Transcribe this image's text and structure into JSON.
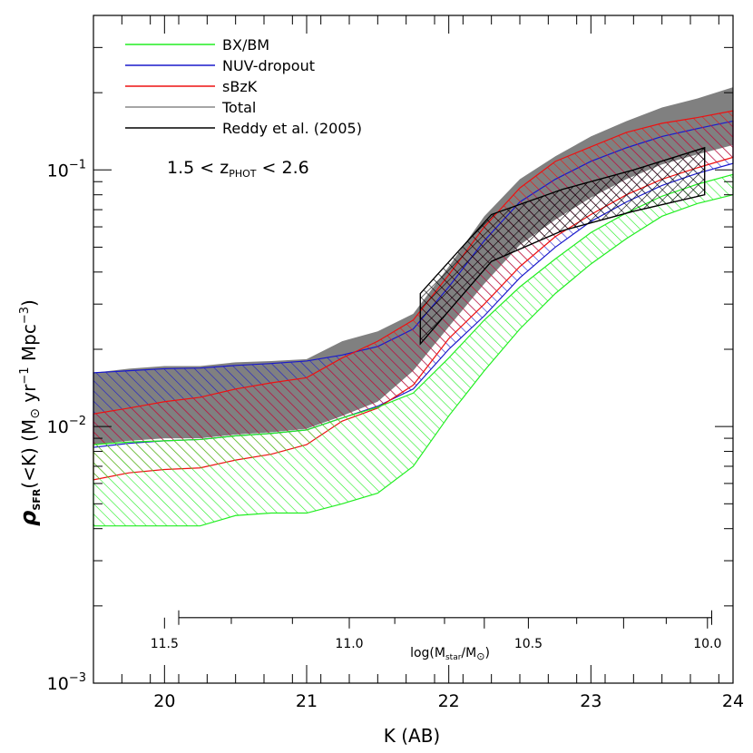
{
  "chart_data": {
    "type": "area",
    "xlabel_main": "K (AB)",
    "ylabel_main": "ρ",
    "ylabel_sub": "SFR",
    "ylabel_rest": "(<K)  (M",
    "ylabel_sun": "⊙",
    "ylabel_units": " yr",
    "ylabel_exp1": "−1",
    "ylabel_mpc": " Mpc",
    "ylabel_exp3": "−3",
    "ylabel_close": ")",
    "xlim": [
      19.5,
      24
    ],
    "ylim": [
      0.001,
      0.4
    ],
    "yscale": "log",
    "x_ticks": [
      20,
      21,
      22,
      23,
      24
    ],
    "x_tick_labels": [
      "20",
      "21",
      "22",
      "23",
      "24"
    ],
    "y_major_ticks": [
      0.001,
      0.01,
      0.1
    ],
    "y_tick_base": "10",
    "y_tick_exps": [
      "−3",
      "−2",
      "−1"
    ],
    "secondary_axis": {
      "label_main": "log(M",
      "label_sub1": "star",
      "label_mid": "/M",
      "label_sun": "⊙",
      "label_close": ")",
      "y_level": 0.0018,
      "x_range": [
        20.1,
        23.85
      ],
      "ticks": [
        {
          "x": 20.0,
          "label": "11.5"
        },
        {
          "x": 21.3,
          "label": "11.0"
        },
        {
          "x": 22.25,
          "label": ""
        },
        {
          "x": 22.56,
          "label": "10.5"
        },
        {
          "x": 23.23,
          "label": ""
        },
        {
          "x": 23.82,
          "label": "10.0"
        }
      ],
      "minor_ticks": [
        20.47,
        20.9,
        21.62,
        21.97,
        22.9,
        23.53
      ]
    },
    "annotation": {
      "prefix": "1.5  <  z",
      "sub": "PHOT",
      "suffix": "  <  2.6"
    },
    "legend": {
      "placement": "top-left",
      "entries": [
        {
          "name": "BX/BM",
          "color": "#22ee22"
        },
        {
          "name": "NUV-dropout",
          "color": "#1a1acc"
        },
        {
          "name": "sBzK",
          "color": "#ee1111"
        },
        {
          "name": "Total",
          "color": "#888888"
        },
        {
          "name": "Reddy et al. (2005)",
          "color": "#000000"
        }
      ]
    },
    "series": [
      {
        "name": "Total",
        "color": "#808080",
        "fill": "solid",
        "x": [
          19.5,
          19.75,
          20.0,
          20.25,
          20.5,
          20.75,
          21.0,
          21.25,
          21.5,
          21.75,
          22.0,
          22.25,
          22.5,
          22.75,
          23.0,
          23.25,
          23.5,
          23.75,
          24.0
        ],
        "upper": [
          0.0162,
          0.0168,
          0.0172,
          0.0172,
          0.0178,
          0.018,
          0.0183,
          0.0215,
          0.0235,
          0.0275,
          0.042,
          0.066,
          0.092,
          0.113,
          0.135,
          0.155,
          0.175,
          0.19,
          0.21
        ],
        "lower": [
          0.0085,
          0.0088,
          0.009,
          0.009,
          0.0093,
          0.0095,
          0.0098,
          0.011,
          0.0125,
          0.0165,
          0.0245,
          0.036,
          0.051,
          0.064,
          0.078,
          0.092,
          0.105,
          0.115,
          0.125
        ]
      },
      {
        "name": "NUV-dropout",
        "color": "#1a1acc",
        "fill": "hatch",
        "x": [
          19.5,
          19.75,
          20.0,
          20.25,
          20.5,
          20.75,
          21.0,
          21.25,
          21.5,
          21.75,
          22.0,
          22.25,
          22.5,
          22.75,
          23.0,
          23.25,
          23.5,
          23.75,
          24.0
        ],
        "upper": [
          0.0162,
          0.0165,
          0.0168,
          0.0169,
          0.0173,
          0.0176,
          0.018,
          0.019,
          0.0205,
          0.024,
          0.035,
          0.053,
          0.075,
          0.092,
          0.108,
          0.122,
          0.135,
          0.145,
          0.155
        ],
        "lower": [
          0.0083,
          0.0086,
          0.0088,
          0.0089,
          0.0092,
          0.0094,
          0.0097,
          0.0108,
          0.012,
          0.014,
          0.02,
          0.027,
          0.038,
          0.05,
          0.063,
          0.075,
          0.087,
          0.097,
          0.106
        ]
      },
      {
        "name": "sBzK",
        "color": "#ee1111",
        "fill": "hatch",
        "x": [
          19.5,
          19.75,
          20.0,
          20.25,
          20.5,
          20.75,
          21.0,
          21.25,
          21.5,
          21.75,
          22.0,
          22.25,
          22.5,
          22.75,
          23.0,
          23.25,
          23.5,
          23.75,
          24.0
        ],
        "upper": [
          0.0112,
          0.0118,
          0.0125,
          0.013,
          0.014,
          0.0148,
          0.0155,
          0.0185,
          0.0215,
          0.026,
          0.039,
          0.06,
          0.085,
          0.108,
          0.123,
          0.14,
          0.152,
          0.16,
          0.17
        ],
        "lower": [
          0.0062,
          0.0066,
          0.0068,
          0.0069,
          0.0074,
          0.0078,
          0.0085,
          0.0105,
          0.0118,
          0.0145,
          0.022,
          0.03,
          0.042,
          0.055,
          0.067,
          0.08,
          0.092,
          0.102,
          0.112
        ]
      },
      {
        "name": "BX/BM",
        "color": "#22ee22",
        "fill": "hatch",
        "x": [
          19.5,
          19.75,
          20.0,
          20.25,
          20.5,
          20.75,
          21.0,
          21.25,
          21.5,
          21.75,
          22.0,
          22.25,
          22.5,
          22.75,
          23.0,
          23.25,
          23.5,
          23.75,
          24.0
        ],
        "upper": [
          0.0085,
          0.0087,
          0.0088,
          0.0089,
          0.0092,
          0.0094,
          0.0097,
          0.0108,
          0.0119,
          0.0135,
          0.0185,
          0.026,
          0.035,
          0.045,
          0.057,
          0.068,
          0.079,
          0.088,
          0.096
        ],
        "lower": [
          0.0041,
          0.0041,
          0.0041,
          0.0041,
          0.0045,
          0.0046,
          0.0046,
          0.005,
          0.0055,
          0.007,
          0.011,
          0.0165,
          0.024,
          0.033,
          0.043,
          0.054,
          0.066,
          0.074,
          0.08
        ]
      },
      {
        "name": "Reddy et al. (2005)",
        "color": "#000000",
        "fill": "hatch-cross",
        "x": [
          21.8,
          22.3,
          22.8,
          23.3,
          23.8
        ],
        "upper": [
          0.033,
          0.067,
          0.084,
          0.1,
          0.122
        ],
        "lower": [
          0.021,
          0.044,
          0.058,
          0.069,
          0.08
        ]
      }
    ]
  }
}
